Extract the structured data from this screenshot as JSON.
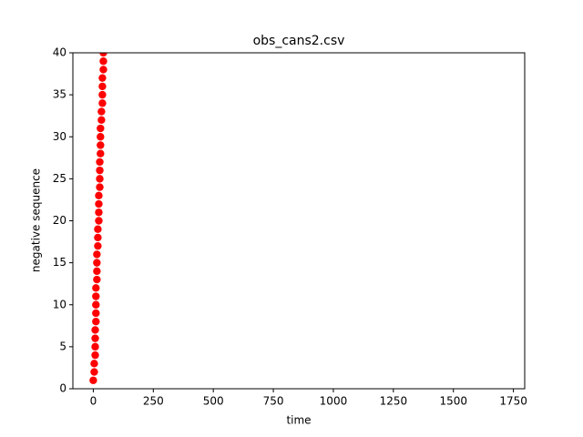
{
  "chart_data": {
    "type": "scatter",
    "title": "obs_cans2.csv",
    "x_label": "time",
    "y_label": "negative sequence",
    "series": [
      {
        "color": "#ff0000",
        "x": [
          0,
          4,
          4,
          8,
          8,
          8,
          8,
          11,
          11,
          11,
          11,
          11,
          15,
          15,
          15,
          15,
          19,
          19,
          19,
          23,
          23,
          23,
          23,
          27,
          27,
          27,
          27,
          30,
          30,
          30,
          30,
          34,
          34,
          38,
          38,
          38,
          38,
          42,
          42,
          42
        ],
        "values": [
          1,
          2,
          3,
          4,
          5,
          6,
          7,
          8,
          9,
          10,
          11,
          12,
          13,
          14,
          15,
          16,
          17,
          18,
          19,
          20,
          21,
          22,
          23,
          24,
          25,
          26,
          27,
          28,
          29,
          30,
          31,
          32,
          33,
          34,
          35,
          36,
          37,
          38,
          39,
          40
        ]
      }
    ],
    "xlim": [
      -85,
      1797
    ],
    "xticks": [
      0,
      250,
      500,
      750,
      1000,
      1250,
      1500,
      1750
    ],
    "ylim": [
      0,
      40
    ],
    "yticks": [
      0,
      5,
      10,
      15,
      20,
      25,
      30,
      35,
      40
    ]
  }
}
